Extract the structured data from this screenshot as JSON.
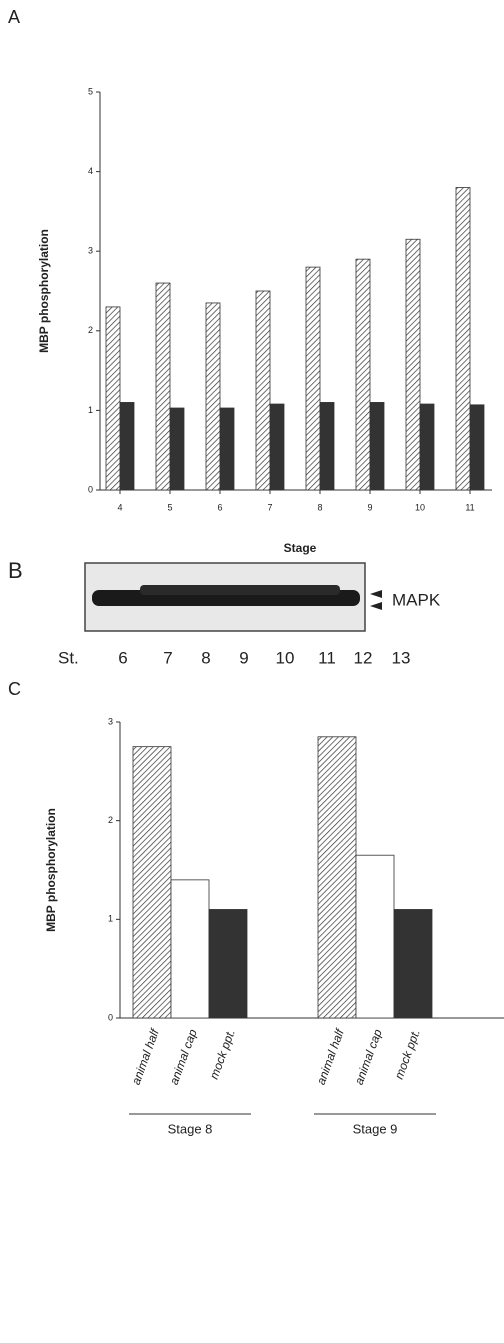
{
  "panel_labels": [
    "A",
    "B",
    "C"
  ],
  "chart_data": [
    {
      "type": "bar",
      "xlabel": "Stage",
      "ylabel": "MBP phosphorylation",
      "categories": [
        "4",
        "5",
        "6",
        "7",
        "8",
        "9",
        "10",
        "11"
      ],
      "series": [
        {
          "color": "#ffffff",
          "hatch": true,
          "values": [
            2.3,
            2.6,
            2.35,
            2.5,
            2.8,
            2.9,
            3.15,
            3.8
          ]
        },
        {
          "color": "#333333",
          "hatch": false,
          "values": [
            1.1,
            1.03,
            1.03,
            1.08,
            1.1,
            1.1,
            1.08,
            1.07
          ]
        }
      ],
      "ylim": [
        0,
        5
      ],
      "yticks": [
        0,
        1,
        2,
        3,
        4,
        5
      ]
    },
    {
      "type": "grouped-bar",
      "ylabel": "MBP phosphorylation",
      "groups": [
        {
          "name": "Stage 8",
          "categories": [
            "animal half",
            "animal cap",
            "mock ppt."
          ],
          "values": [
            2.75,
            1.4,
            1.1
          ]
        },
        {
          "name": "Stage 9",
          "categories": [
            "animal half",
            "animal cap",
            "mock ppt."
          ],
          "values": [
            2.85,
            1.65,
            1.1
          ]
        }
      ],
      "bar_colors": [
        "#ffffff",
        "#ffffff",
        "#333333"
      ],
      "hatch": [
        true,
        false,
        false
      ],
      "ylim": [
        0,
        3
      ],
      "yticks": [
        0,
        1,
        2,
        3
      ]
    }
  ],
  "blot": {
    "stage_prefix": "St.",
    "stages": [
      "6",
      "7",
      "8",
      "9",
      "10",
      "11",
      "12",
      "13"
    ],
    "label": "MAPK"
  }
}
